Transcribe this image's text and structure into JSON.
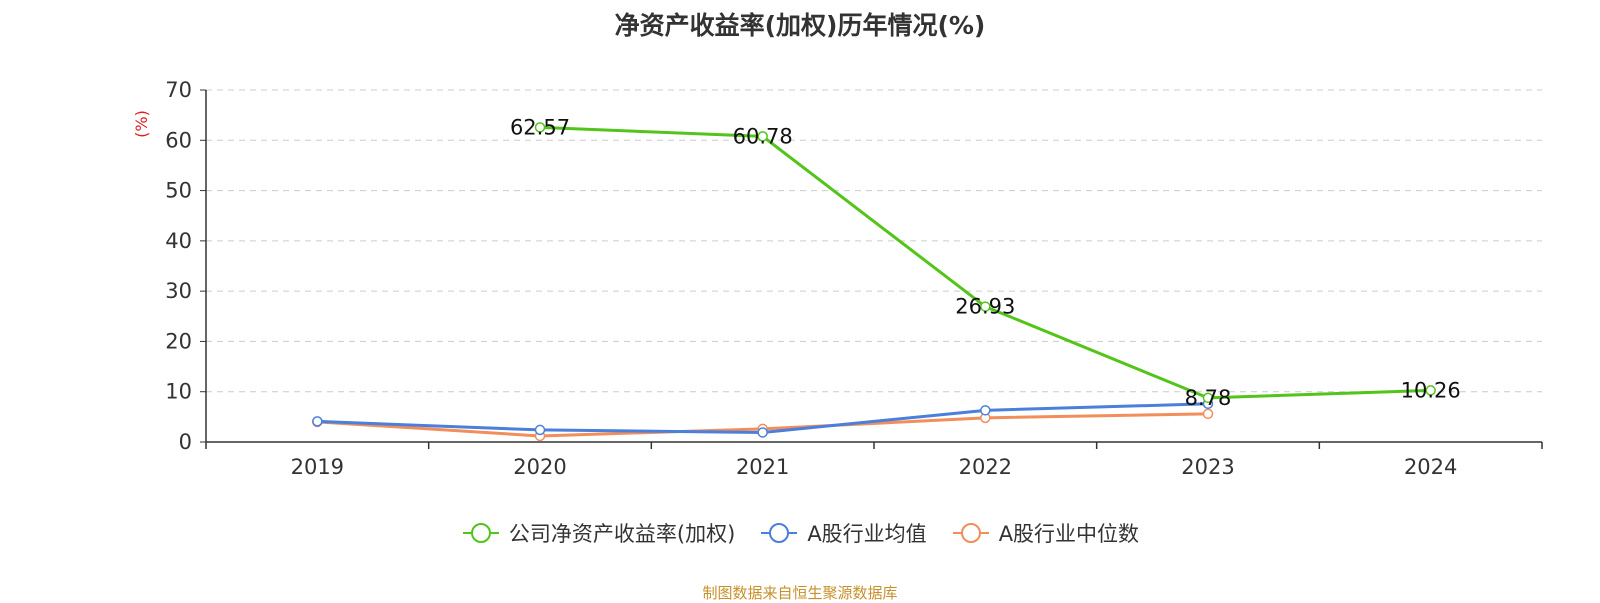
{
  "chart_data": {
    "type": "line",
    "title": "净资产收益率(加权)历年情况(%)",
    "ylabel": "(%)",
    "xlabel": "",
    "categories": [
      "2019",
      "2020",
      "2021",
      "2022",
      "2023",
      "2024"
    ],
    "ylim": [
      0,
      70
    ],
    "yticks": [
      0,
      10,
      20,
      30,
      40,
      50,
      60,
      70
    ],
    "grid": true,
    "legend_position": "bottom",
    "series": [
      {
        "name": "公司净资产收益率(加权)",
        "color": "#52c41a",
        "values": [
          null,
          62.57,
          60.78,
          26.93,
          8.78,
          10.26
        ],
        "labels": [
          "",
          "62.57",
          "60.78",
          "26.93",
          "8.78",
          "10.26"
        ]
      },
      {
        "name": "A股行业均值",
        "color": "#4a7fdb",
        "values": [
          4.1,
          2.4,
          1.9,
          6.3,
          7.6,
          null
        ]
      },
      {
        "name": "A股行业中位数",
        "color": "#f28e5b",
        "values": [
          4.0,
          1.2,
          2.6,
          4.8,
          5.6,
          null
        ]
      }
    ]
  },
  "source_text": "制图数据来自恒生聚源数据库",
  "colors": {
    "source_text": "#c8902a",
    "ylabel": "#e02020",
    "grid": "#cccccc",
    "axis": "#333333"
  }
}
